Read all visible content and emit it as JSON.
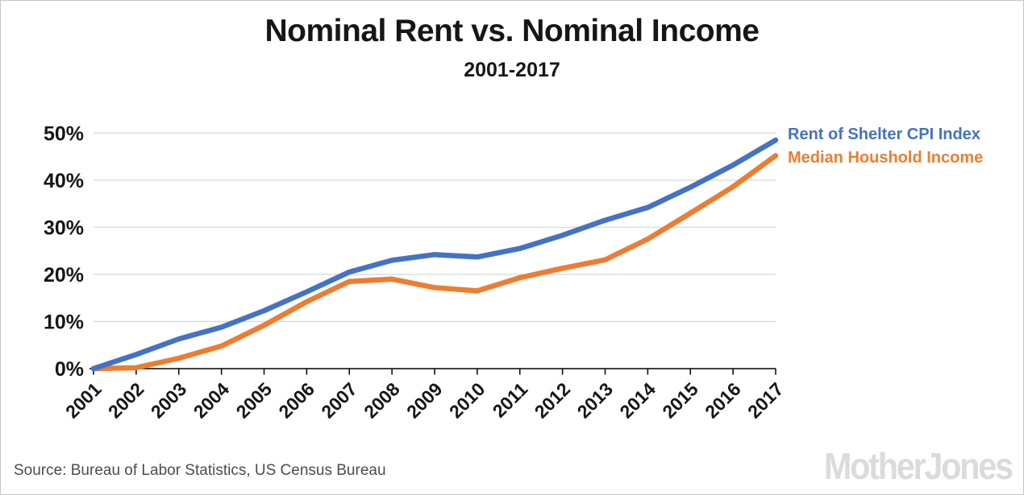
{
  "chart_data": {
    "type": "line",
    "title": "Nominal Rent vs. Nominal Income",
    "subtitle": "2001-2017",
    "x": [
      2001,
      2002,
      2003,
      2004,
      2005,
      2006,
      2007,
      2008,
      2009,
      2010,
      2011,
      2012,
      2013,
      2014,
      2015,
      2016,
      2017
    ],
    "series": [
      {
        "name": "Rent of Shelter CPI Index",
        "color": "#4472C4",
        "values": [
          0,
          3.0,
          6.3,
          8.8,
          12.3,
          16.3,
          20.5,
          23.0,
          24.2,
          23.7,
          25.5,
          28.3,
          31.5,
          34.2,
          38.5,
          43.2,
          48.5
        ]
      },
      {
        "name": "Median Houshold Income",
        "color": "#ED7D31",
        "values": [
          0,
          0.2,
          2.2,
          4.8,
          9.2,
          14.2,
          18.5,
          19.0,
          17.2,
          16.5,
          19.3,
          21.3,
          23.1,
          27.5,
          33.0,
          38.6,
          45.2
        ]
      }
    ],
    "ylim": [
      0,
      50
    ],
    "y_ticks": [
      0,
      10,
      20,
      30,
      40,
      50
    ],
    "y_tick_suffix": "%",
    "grid": "horizontal",
    "grid_color": "#D9D9D9",
    "axis_color": "#000000",
    "legend_position": "right-of-plot-top"
  },
  "footer": {
    "source": "Source: Bureau of Labor Statistics, US Census Bureau",
    "logo": "MotherJones"
  }
}
